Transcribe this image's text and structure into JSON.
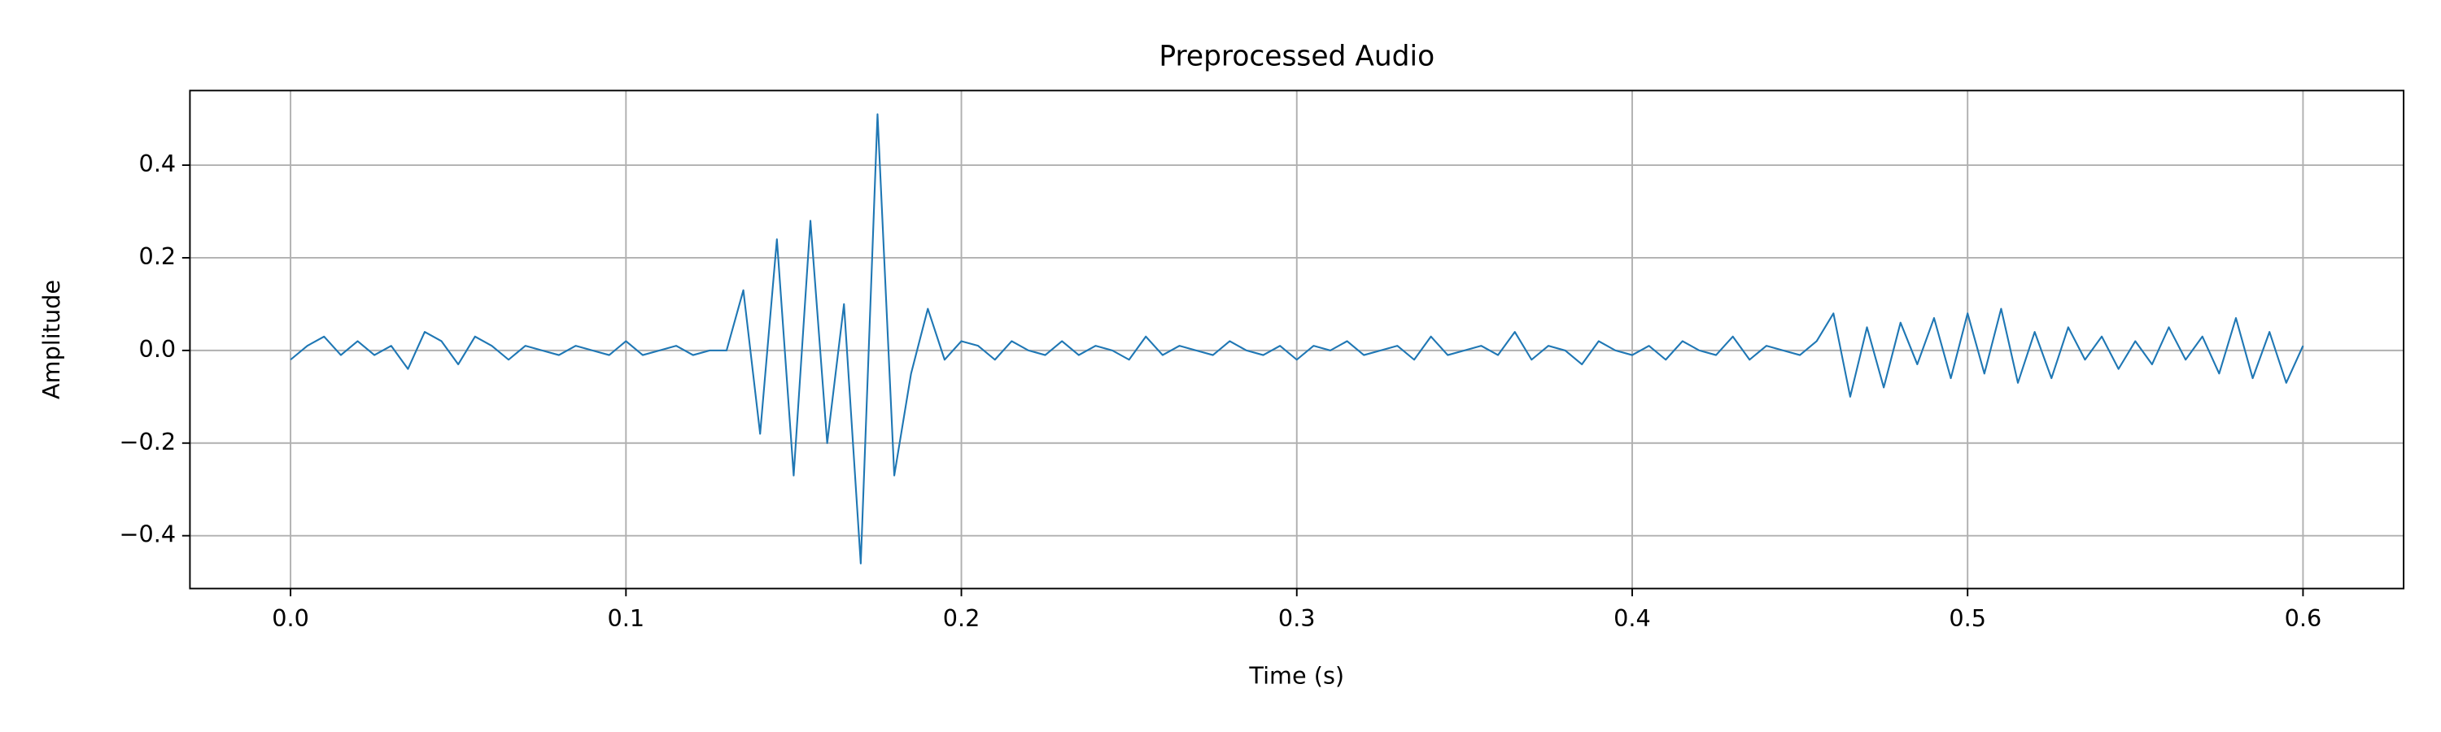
{
  "chart_data": {
    "type": "line",
    "title": "Preprocessed Audio",
    "x_label": "Time (s)",
    "y_label": "Amplitude",
    "xlim": [
      -0.03,
      0.63
    ],
    "ylim": [
      -0.514,
      0.561
    ],
    "xticks": [
      {
        "value": 0,
        "label": "0.0"
      },
      0.1,
      0.2,
      0.3,
      0.4,
      0.5,
      0.6
    ],
    "yticks": [
      {
        "value": -0.4,
        "label": "−0.4"
      },
      {
        "value": -0.2,
        "label": "−0.2"
      },
      {
        "value": 0,
        "label": "0.0"
      },
      0.2,
      0.4
    ],
    "grid": true,
    "x": [
      0,
      0.005,
      0.01,
      0.015,
      0.02,
      0.025,
      0.03,
      0.035,
      0.04,
      0.045,
      0.05,
      0.055,
      0.06,
      0.065,
      0.07,
      0.075,
      0.08,
      0.085,
      0.09,
      0.095,
      0.1,
      0.105,
      0.11,
      0.115,
      0.12,
      0.125,
      0.13,
      0.135,
      0.14,
      0.145,
      0.15,
      0.155,
      0.16,
      0.165,
      0.17,
      0.175,
      0.18,
      0.185,
      0.19,
      0.195,
      0.2,
      0.205,
      0.21,
      0.215,
      0.22,
      0.225,
      0.23,
      0.235,
      0.24,
      0.245,
      0.25,
      0.255,
      0.26,
      0.265,
      0.27,
      0.275,
      0.28,
      0.285,
      0.29,
      0.295,
      0.3,
      0.305,
      0.31,
      0.315,
      0.32,
      0.325,
      0.33,
      0.335,
      0.34,
      0.345,
      0.35,
      0.355,
      0.36,
      0.365,
      0.37,
      0.375,
      0.38,
      0.385,
      0.39,
      0.395,
      0.4,
      0.405,
      0.41,
      0.415,
      0.42,
      0.425,
      0.43,
      0.435,
      0.44,
      0.445,
      0.45,
      0.455,
      0.46,
      0.465,
      0.47,
      0.475,
      0.48,
      0.485,
      0.49,
      0.495,
      0.5,
      0.505,
      0.51,
      0.515,
      0.52,
      0.525,
      0.53,
      0.535,
      0.54,
      0.545,
      0.55,
      0.555,
      0.56,
      0.565,
      0.57,
      0.575,
      0.58,
      0.585,
      0.59,
      0.595,
      0.6
    ],
    "series": [
      {
        "color": "#1f77b4",
        "values": [
          -0.02,
          0.01,
          0.03,
          -0.01,
          0.02,
          -0.01,
          0.01,
          -0.04,
          0.04,
          0.02,
          -0.03,
          0.03,
          0.01,
          -0.02,
          0.01,
          0.0,
          -0.01,
          0.01,
          0.0,
          -0.01,
          0.02,
          -0.01,
          0.0,
          0.01,
          -0.01,
          0.0,
          0.0,
          0.13,
          -0.18,
          0.24,
          -0.27,
          0.28,
          -0.2,
          0.1,
          -0.46,
          0.51,
          -0.27,
          -0.05,
          0.09,
          -0.02,
          0.02,
          0.01,
          -0.02,
          0.02,
          0.0,
          -0.01,
          0.02,
          -0.01,
          0.01,
          0.0,
          -0.02,
          0.03,
          -0.01,
          0.01,
          0.0,
          -0.01,
          0.02,
          0.0,
          -0.01,
          0.01,
          -0.02,
          0.01,
          0.0,
          0.02,
          -0.01,
          0.0,
          0.01,
          -0.02,
          0.03,
          -0.01,
          0.0,
          0.01,
          -0.01,
          0.04,
          -0.02,
          0.01,
          0.0,
          -0.03,
          0.02,
          0.0,
          -0.01,
          0.01,
          -0.02,
          0.02,
          0.0,
          -0.01,
          0.03,
          -0.02,
          0.01,
          0.0,
          -0.01,
          0.02,
          0.08,
          -0.1,
          0.05,
          -0.08,
          0.06,
          -0.03,
          0.07,
          -0.06,
          0.08,
          -0.05,
          0.09,
          -0.07,
          0.04,
          -0.06,
          0.05,
          -0.02,
          0.03,
          -0.04,
          0.02,
          -0.03,
          0.05,
          -0.02,
          0.03,
          -0.05,
          0.07,
          -0.06,
          0.04,
          -0.07,
          0.01
        ]
      }
    ]
  }
}
